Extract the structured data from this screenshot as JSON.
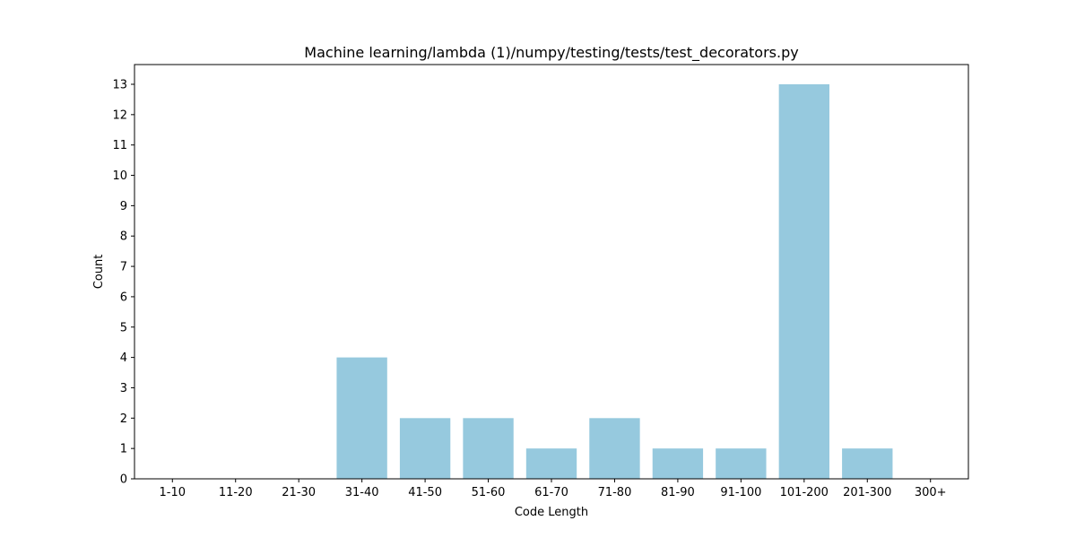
{
  "chart_data": {
    "type": "bar",
    "title": "Machine learning/lambda (1)/numpy/testing/tests/test_decorators.py",
    "xlabel": "Code Length",
    "ylabel": "Count",
    "categories": [
      "1-10",
      "11-20",
      "21-30",
      "31-40",
      "41-50",
      "51-60",
      "61-70",
      "71-80",
      "81-90",
      "91-100",
      "101-200",
      "201-300",
      "300+"
    ],
    "values": [
      0,
      0,
      0,
      4,
      2,
      2,
      1,
      2,
      1,
      1,
      13,
      1,
      0
    ],
    "ylim": [
      0,
      13.65
    ],
    "yticks": [
      0,
      1,
      2,
      3,
      4,
      5,
      6,
      7,
      8,
      9,
      10,
      11,
      12,
      13
    ],
    "grid": false,
    "bar_color": "#96c9de"
  }
}
